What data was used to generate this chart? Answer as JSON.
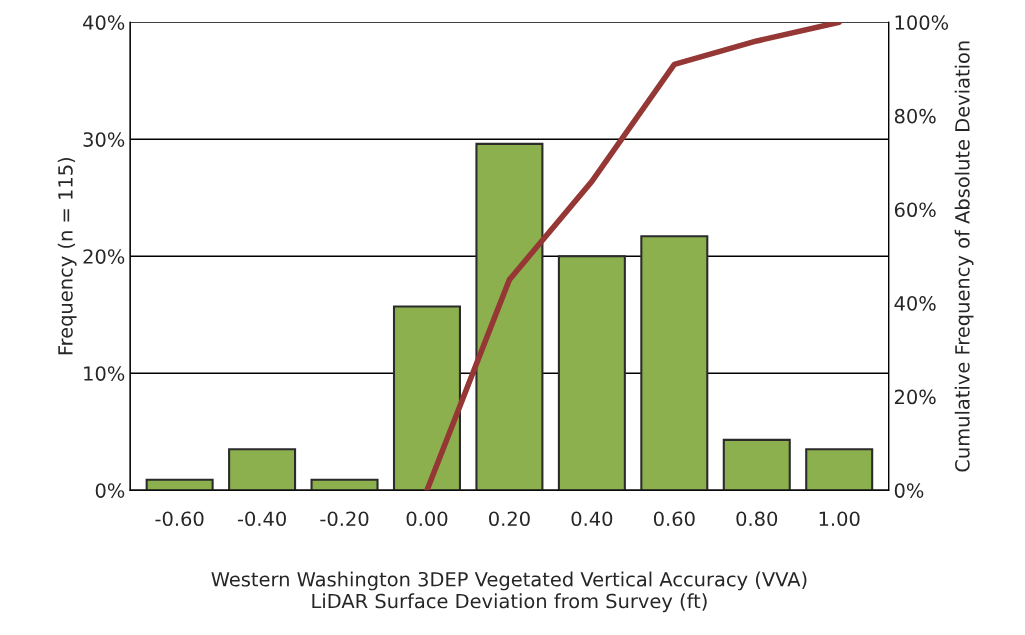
{
  "chart_data": {
    "type": "bar",
    "xlabel": "Western Washington 3DEP Vegetated Vertical Accuracy (VVA)\nLiDAR Surface Deviation from Survey (ft)",
    "ylabel": "Frequency (n = 115)",
    "y2label": "Cumulative Frequency of Absolute Deviation",
    "categories": [
      "-0.60",
      "-0.40",
      "-0.20",
      "0.00",
      "0.20",
      "0.40",
      "0.60",
      "0.80",
      "1.00"
    ],
    "series": [
      {
        "color": "#8db04e",
        "values": [
          0.9,
          3.5,
          0.9,
          15.7,
          29.6,
          20.0,
          21.7,
          4.3,
          3.5
        ]
      },
      {
        "type": "line",
        "axis": "y2",
        "color": "#953735",
        "values": [
          null,
          null,
          null,
          0,
          45,
          66,
          91,
          96,
          100
        ]
      }
    ],
    "ylim": [
      0,
      40
    ],
    "yticks": [
      {
        "value": 0,
        "label": "0%"
      },
      {
        "value": 10,
        "label": "10%"
      },
      {
        "value": 20,
        "label": "20%"
      },
      {
        "value": 30,
        "label": "30%"
      },
      {
        "value": 40,
        "label": "40%"
      }
    ],
    "y2lim": [
      0,
      100
    ],
    "y2ticks": [
      {
        "value": 0,
        "label": "0%"
      },
      {
        "value": 20,
        "label": "20%"
      },
      {
        "value": 40,
        "label": "40%"
      },
      {
        "value": 60,
        "label": "60%"
      },
      {
        "value": 80,
        "label": "80%"
      },
      {
        "value": 100,
        "label": "100%"
      }
    ],
    "grid": "y",
    "legend": false
  }
}
